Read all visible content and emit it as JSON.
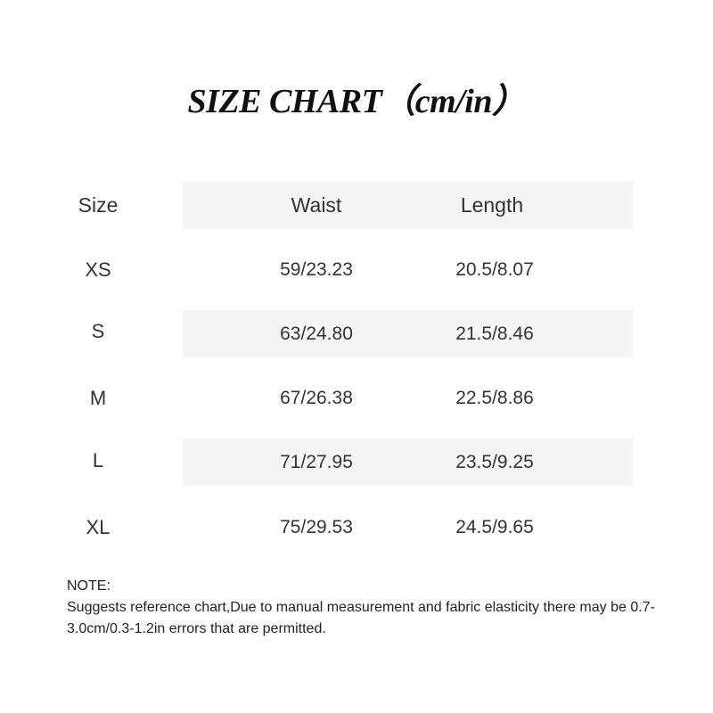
{
  "title": "SIZE CHART（cm/in）",
  "headers": [
    "Size",
    "Waist",
    "Length"
  ],
  "rows": [
    [
      "XS",
      "59/23.23",
      "20.5/8.07"
    ],
    [
      "S",
      "63/24.80",
      "21.5/8.46"
    ],
    [
      "M",
      "67/26.38",
      "22.5/8.86"
    ],
    [
      "L",
      "71/27.95",
      "23.5/9.25"
    ],
    [
      "XL",
      "75/29.53",
      "24.5/9.65"
    ]
  ],
  "note": {
    "label": "NOTE:",
    "text": "Suggests reference chart,Due to manual measurement and fabric elasticity there may be 0.7-3.0cm/0.3-1.2in errors that are permitted."
  }
}
